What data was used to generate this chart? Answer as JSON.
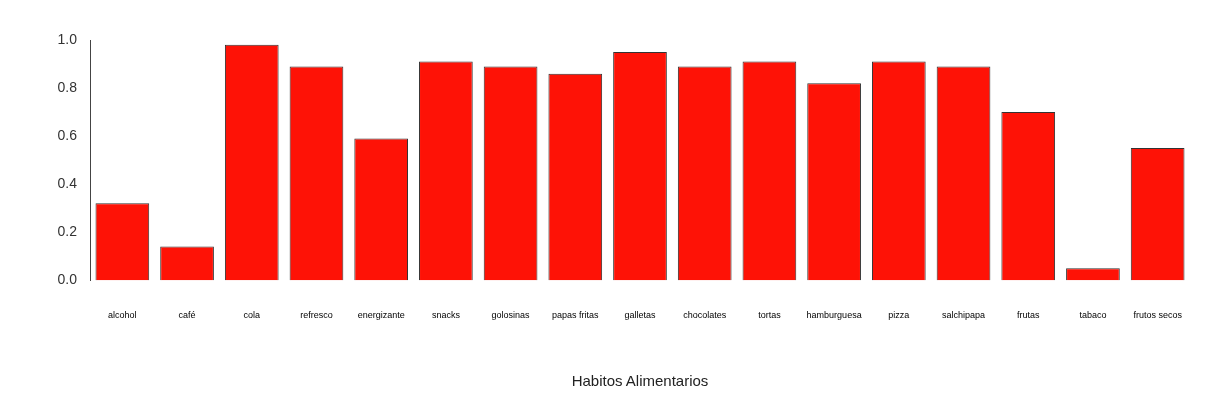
{
  "chart_data": {
    "type": "bar",
    "xlabel": "Habitos Alimentarios",
    "categories": [
      "alcohol",
      "café",
      "cola",
      "refresco",
      "energizante",
      "snacks",
      "golosinas",
      "papas fritas",
      "galletas",
      "chocolates",
      "tortas",
      "hamburguesa",
      "pizza",
      "salchipapa",
      "frutas",
      "tabaco",
      "frutos secos"
    ],
    "values": [
      0.32,
      0.14,
      0.98,
      0.89,
      0.59,
      0.91,
      0.89,
      0.86,
      0.95,
      0.89,
      0.91,
      0.82,
      0.91,
      0.89,
      0.7,
      0.05,
      0.55
    ],
    "color": "#fe1206",
    "ylim": [
      0,
      1
    ],
    "yticks": [
      {
        "value": 0,
        "label": "0.0"
      },
      {
        "value": 0.2,
        "label": "0.2"
      },
      {
        "value": 0.4,
        "label": "0.4"
      },
      {
        "value": 0.6,
        "label": "0.6"
      },
      {
        "value": 0.8,
        "label": "0.8"
      },
      {
        "value": 1,
        "label": "1.0"
      }
    ],
    "grid": false,
    "legend": false
  }
}
